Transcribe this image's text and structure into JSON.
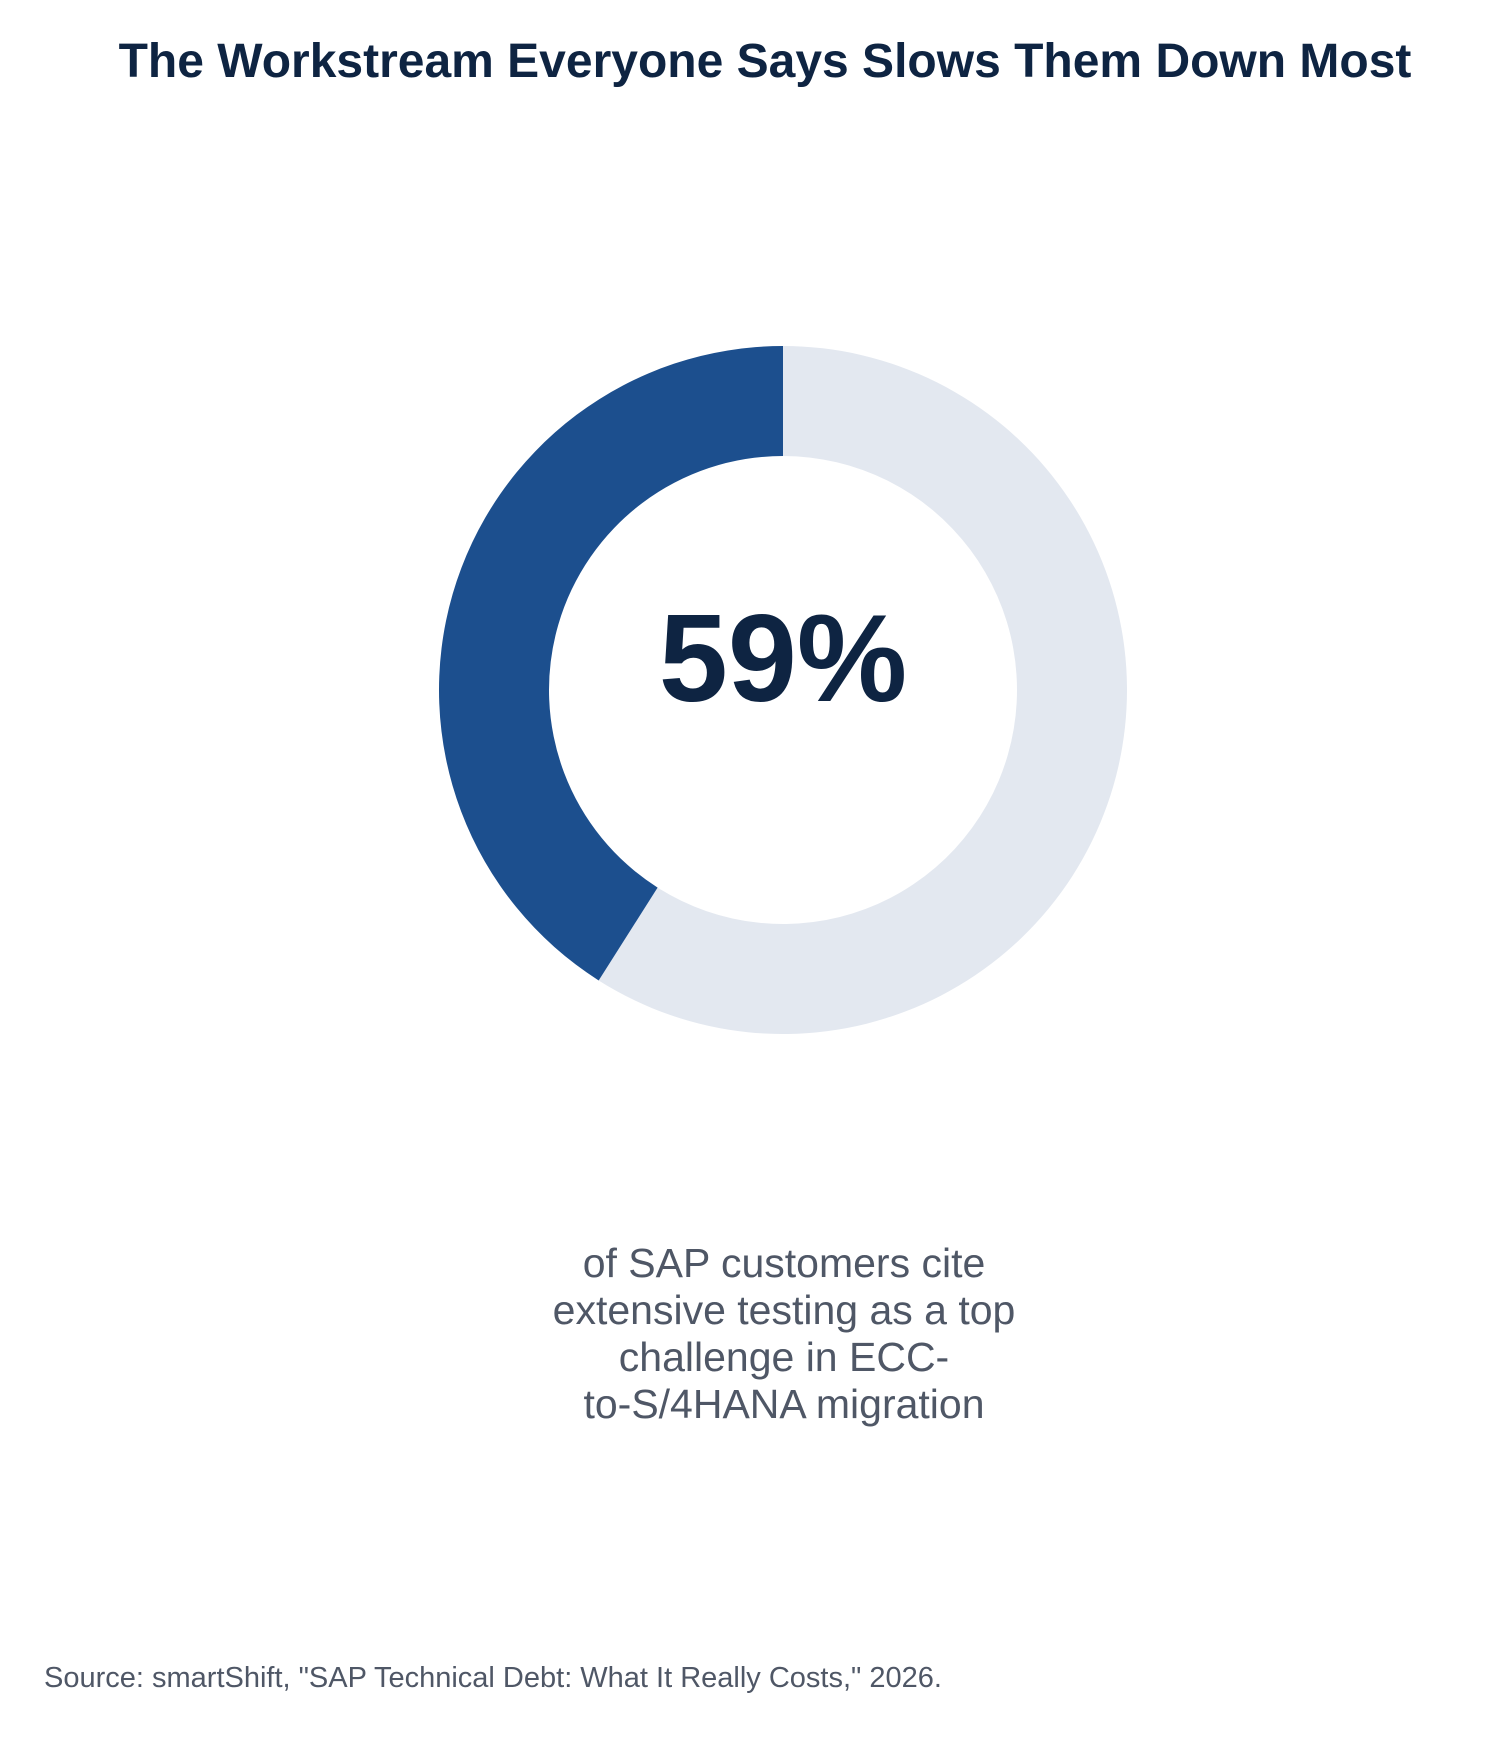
{
  "chart_data": {
    "type": "pie",
    "title": "The Workstream Everyone Says Slows Them Down Most",
    "value": 59,
    "unit": "%",
    "center_label": "59%",
    "slices": [
      {
        "value": 59,
        "color": "#e3e8f0"
      },
      {
        "value": 41,
        "color": "#1c4f8e"
      }
    ],
    "caption_lines": [
      "of SAP customers cite",
      "extensive testing as a top",
      "challenge in ECC-",
      "to-S/4HANA migration"
    ],
    "source": "Source: smartShift, \"SAP Technical Debt: What It Really Costs,\" 2026."
  }
}
